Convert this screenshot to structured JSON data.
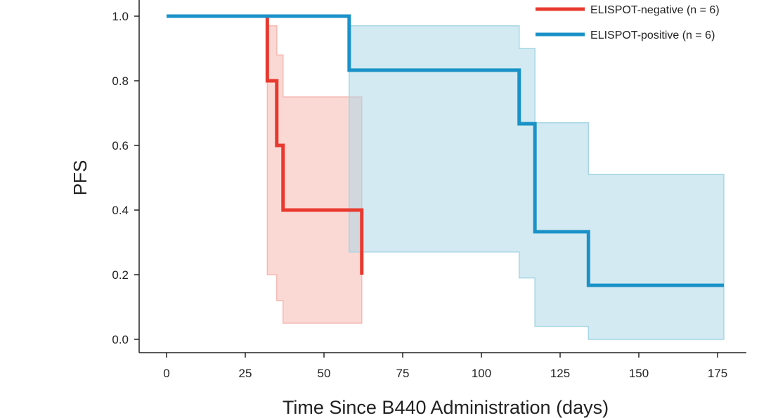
{
  "chart_data": {
    "type": "line",
    "xlabel": "Time Since B440 Administration (days)",
    "ylabel": "PFS",
    "xlim": [
      0,
      177
    ],
    "ylim": [
      0,
      1
    ],
    "x_ticks": [
      "0",
      "25",
      "50",
      "75",
      "100",
      "125",
      "150",
      "175"
    ],
    "y_ticks": [
      "0.0",
      "0.2",
      "0.4",
      "0.6",
      "0.8",
      "1.0"
    ],
    "grid": false,
    "legend_position": "top-right",
    "series": [
      {
        "name": "ELISPOT-negative (n = 6)",
        "color": "#e8392f",
        "band_color": "#f6b9b3",
        "x": [
          0,
          32,
          35,
          37,
          62
        ],
        "y": [
          1.0,
          0.8,
          0.6,
          0.4,
          0.2
        ],
        "ci_band": {
          "x": [
            32,
            34,
            35,
            37,
            62
          ],
          "lower": [
            0.2,
            0.2,
            0.12,
            0.05,
            0.05
          ],
          "upper": [
            0.97,
            0.97,
            0.88,
            0.75,
            0.75
          ],
          "end": 62
        }
      },
      {
        "name": "ELISPOT-positive (n = 6)",
        "color": "#1a92c8",
        "band_color": "#a7d6e5",
        "x": [
          0,
          58,
          112,
          117,
          134,
          177
        ],
        "y": [
          1.0,
          0.833,
          0.667,
          0.333,
          0.167,
          0.167
        ],
        "ci_band": {
          "x": [
            58,
            112,
            117,
            134
          ],
          "lower": [
            0.27,
            0.19,
            0.04,
            0.0
          ],
          "upper": [
            0.97,
            0.9,
            0.67,
            0.51
          ],
          "end": 177
        }
      }
    ]
  }
}
